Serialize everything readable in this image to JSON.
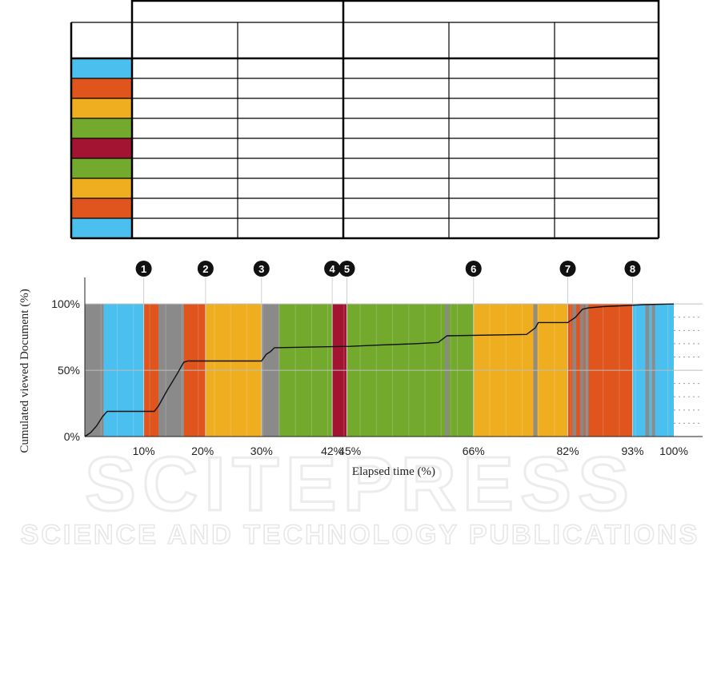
{
  "table": {
    "rows": 9,
    "row_colors": [
      "#4bc0ef",
      "#e0541d",
      "#eeae20",
      "#73aa2d",
      "#a31433",
      "#73aa2d",
      "#eeae20",
      "#e0541d",
      "#4bc0ef"
    ]
  },
  "watermark": {
    "line1": "SCITEPRESS",
    "line2": "SCIENCE AND TECHNOLOGY PUBLICATIONS"
  },
  "chart_data": {
    "type": "area",
    "xlabel": "Elapsed time (%)",
    "ylabel": "Cumulated viewed Document (%)",
    "xlim": [
      0,
      100
    ],
    "ylim": [
      0,
      120
    ],
    "yticks": [
      {
        "value": 0,
        "label": "0%"
      },
      {
        "value": 50,
        "label": "50%"
      },
      {
        "value": 100,
        "label": "100%"
      }
    ],
    "xticks": [
      {
        "value": 10,
        "label": "10%"
      },
      {
        "value": 20,
        "label": "20%"
      },
      {
        "value": 30,
        "label": "30%"
      },
      {
        "value": 42,
        "label": "42%"
      },
      {
        "value": 45,
        "label": "45%"
      },
      {
        "value": 66,
        "label": "66%"
      },
      {
        "value": 82,
        "label": "82%"
      },
      {
        "value": 93,
        "label": "93%"
      },
      {
        "value": 100,
        "label": "100%"
      }
    ],
    "markers": [
      {
        "label": "1",
        "x": 10
      },
      {
        "label": "2",
        "x": 20.5
      },
      {
        "label": "3",
        "x": 30
      },
      {
        "label": "4",
        "x": 42
      },
      {
        "label": "5",
        "x": 44.5
      },
      {
        "label": "6",
        "x": 66
      },
      {
        "label": "7",
        "x": 82
      },
      {
        "label": "8",
        "x": 93
      }
    ],
    "bands": [
      {
        "start": 0,
        "end": 3.2,
        "color": "#8a8a8a"
      },
      {
        "start": 3.2,
        "end": 10,
        "color": "#4bc0ef"
      },
      {
        "start": 10,
        "end": 12.5,
        "color": "#e0541d"
      },
      {
        "start": 12.5,
        "end": 16.8,
        "color": "#8a8a8a"
      },
      {
        "start": 16.8,
        "end": 20.5,
        "color": "#e0541d"
      },
      {
        "start": 20.5,
        "end": 30,
        "color": "#eeae20"
      },
      {
        "start": 30,
        "end": 33,
        "color": "#8a8a8a"
      },
      {
        "start": 33,
        "end": 42,
        "color": "#73aa2d"
      },
      {
        "start": 42,
        "end": 44.5,
        "color": "#a31433"
      },
      {
        "start": 44.5,
        "end": 62.2,
        "color": "#73aa2d"
      },
      {
        "start": 62.2,
        "end": 66,
        "color": "#73aa2d"
      },
      {
        "start": 66,
        "end": 82,
        "color": "#eeae20"
      },
      {
        "start": 82,
        "end": 85.5,
        "color": "#e0541d"
      },
      {
        "start": 85.5,
        "end": 93,
        "color": "#e0541d"
      },
      {
        "start": 93,
        "end": 100,
        "color": "#4bc0ef"
      }
    ],
    "gray_stripes": [
      1.2,
      2.4,
      13.2,
      14.4,
      15.6,
      30.6,
      31.4,
      32.2,
      61.5,
      76.5,
      83.1,
      84.4,
      85.2,
      95.5,
      96.5
    ],
    "series": [
      {
        "values": [
          [
            0,
            0
          ],
          [
            1,
            3
          ],
          [
            2,
            8
          ],
          [
            3,
            15
          ],
          [
            3.8,
            19
          ],
          [
            11.8,
            19
          ],
          [
            12.5,
            23
          ],
          [
            14,
            35
          ],
          [
            15.5,
            46
          ],
          [
            16.8,
            56
          ],
          [
            17.5,
            57
          ],
          [
            30,
            57
          ],
          [
            30.8,
            62
          ],
          [
            31.5,
            64
          ],
          [
            32.2,
            67
          ],
          [
            45,
            68
          ],
          [
            50,
            69
          ],
          [
            56,
            70
          ],
          [
            60,
            71
          ],
          [
            61.5,
            76
          ],
          [
            75,
            77
          ],
          [
            76.5,
            82
          ],
          [
            77,
            86
          ],
          [
            82,
            86
          ],
          [
            83.3,
            90
          ],
          [
            84.5,
            96
          ],
          [
            85.5,
            97
          ],
          [
            88,
            98
          ],
          [
            93,
            99
          ],
          [
            95,
            99.5
          ],
          [
            100,
            100
          ]
        ]
      }
    ]
  }
}
